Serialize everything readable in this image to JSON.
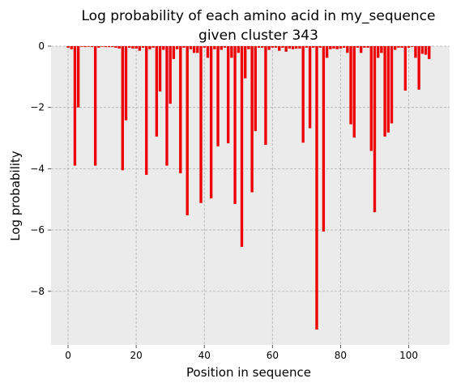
{
  "chart_data": {
    "type": "bar",
    "title_line1": "Log probability of each amino acid in my_sequence",
    "title_line2": "given cluster 343",
    "xlabel": "Position in sequence",
    "ylabel": "Log probability",
    "xlim": [
      -5,
      112
    ],
    "ylim": [
      -9.75,
      0
    ],
    "xticks": [
      0,
      20,
      40,
      60,
      80,
      100
    ],
    "yticks": [
      0,
      -2,
      -4,
      -6,
      -8
    ],
    "xtick_labels": [
      "0",
      "20",
      "40",
      "60",
      "80",
      "100"
    ],
    "ytick_labels": [
      "0",
      "−2",
      "−4",
      "−6",
      "−8"
    ],
    "grid": true,
    "bar_color": "#ee0000",
    "background_color": "#ebebeb",
    "x": [
      0,
      1,
      2,
      3,
      4,
      5,
      6,
      7,
      8,
      9,
      10,
      11,
      12,
      13,
      14,
      15,
      16,
      17,
      18,
      19,
      20,
      21,
      22,
      23,
      24,
      25,
      26,
      27,
      28,
      29,
      30,
      31,
      32,
      33,
      34,
      35,
      36,
      37,
      38,
      39,
      40,
      41,
      42,
      43,
      44,
      45,
      46,
      47,
      48,
      49,
      50,
      51,
      52,
      53,
      54,
      55,
      56,
      57,
      58,
      59,
      60,
      61,
      62,
      63,
      64,
      65,
      66,
      67,
      68,
      69,
      70,
      71,
      72,
      73,
      74,
      75,
      76,
      77,
      78,
      79,
      80,
      81,
      82,
      83,
      84,
      85,
      86,
      87,
      88,
      89,
      90,
      91,
      92,
      93,
      94,
      95,
      96,
      97,
      98,
      99,
      100,
      101,
      102,
      103,
      104,
      105,
      106
    ],
    "values": [
      -0.05,
      -0.1,
      -3.9,
      -2.0,
      -0.02,
      -0.03,
      -0.02,
      -0.03,
      -3.9,
      -0.05,
      -0.02,
      -0.03,
      -0.03,
      -0.03,
      -0.05,
      -0.08,
      -4.05,
      -2.42,
      -0.05,
      -0.08,
      -0.08,
      -0.15,
      -0.05,
      -4.2,
      -0.1,
      -0.05,
      -2.95,
      -1.48,
      -0.12,
      -3.9,
      -1.88,
      -0.42,
      -0.1,
      -4.15,
      -0.05,
      -5.52,
      -0.1,
      -0.22,
      -0.22,
      -5.12,
      -0.05,
      -0.38,
      -4.97,
      -0.1,
      -3.27,
      -0.12,
      -0.05,
      -3.17,
      -0.38,
      -5.15,
      -0.22,
      -6.55,
      -1.05,
      -0.1,
      -4.77,
      -2.77,
      -0.05,
      -0.05,
      -3.22,
      -0.12,
      -0.05,
      -0.05,
      -0.15,
      -0.05,
      -0.18,
      -0.08,
      -0.1,
      -0.08,
      -0.08,
      -3.15,
      -0.05,
      -2.68,
      -0.05,
      -9.25,
      -0.05,
      -6.05,
      -0.38,
      -0.1,
      -0.08,
      -0.1,
      -0.08,
      -0.05,
      -0.22,
      -2.55,
      -2.98,
      -0.05,
      -0.22,
      -0.05,
      -0.05,
      -3.42,
      -5.42,
      -0.38,
      -0.22,
      -2.95,
      -2.82,
      -2.52,
      -0.12,
      -0.05,
      -0.05,
      -1.45,
      -0.05,
      -0.02,
      -0.38,
      -1.42,
      -0.25,
      -0.28,
      -0.42
    ]
  }
}
